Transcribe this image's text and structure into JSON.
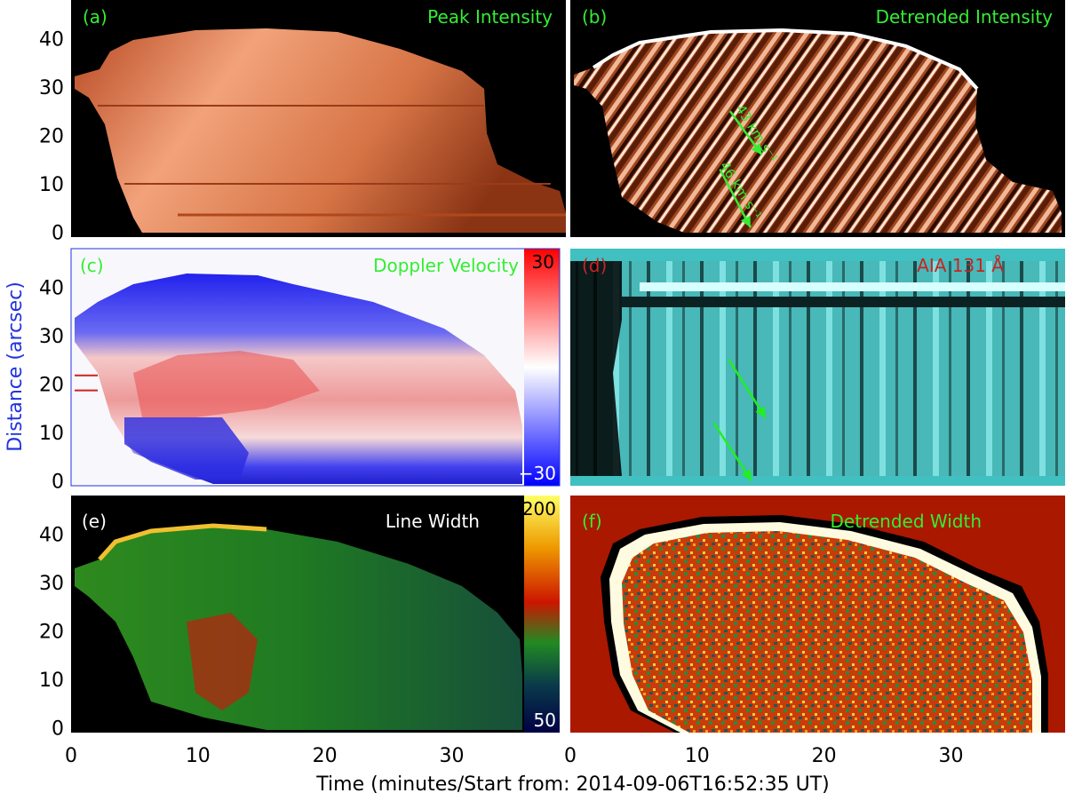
{
  "chart_data": [
    {
      "type": "heatmap",
      "panel": "(a)",
      "title": "Peak Intensity",
      "title_color": "#33ee33",
      "colormap": "black-to-orange",
      "xlim": [
        0,
        39
      ],
      "ylim": [
        -1,
        48
      ],
      "yticks": [
        0,
        10,
        20,
        30,
        40
      ]
    },
    {
      "type": "heatmap",
      "panel": "(b)",
      "title": "Detrended Intensity",
      "title_color": "#33ee33",
      "colormap": "black-to-orange",
      "annotations": [
        {
          "text": "43 km s⁻¹",
          "color": "#33ee33"
        },
        {
          "text": "46 km s⁻¹",
          "color": "#33ee33"
        }
      ],
      "arrows": [
        {
          "from": [
            12.6,
            25
          ],
          "to": [
            15.1,
            16
          ]
        },
        {
          "from": [
            11.8,
            13
          ],
          "to": [
            14.2,
            1
          ]
        }
      ]
    },
    {
      "type": "heatmap",
      "panel": "(c)",
      "title": "Doppler Velocity",
      "title_color": "#33ee33",
      "colormap": "blue-white-red",
      "colorbar": {
        "max_label": "30",
        "min_label": "−30"
      },
      "yticks": [
        0,
        10,
        20,
        30,
        40
      ],
      "markers_y": [
        21.8,
        18.7
      ],
      "marker_color": "#cc2222"
    },
    {
      "type": "heatmap",
      "panel": "(d)",
      "title": "AIA 131 Å",
      "title_color": "#cc2222",
      "colormap": "black-to-cyan",
      "arrows": [
        {
          "from": [
            12.5,
            25
          ],
          "to": [
            15.4,
            13
          ]
        },
        {
          "from": [
            11.3,
            12
          ],
          "to": [
            14.3,
            0
          ]
        }
      ],
      "arrow_color": "#22ee22"
    },
    {
      "type": "heatmap",
      "panel": "(e)",
      "title": "Line Width",
      "title_color": "#ffffff",
      "colormap": "line-width",
      "colorbar": {
        "max_label": "200",
        "min_label": "50"
      },
      "yticks": [
        0,
        10,
        20,
        30,
        40
      ],
      "xticks": [
        0,
        10,
        20,
        30
      ]
    },
    {
      "type": "heatmap",
      "panel": "(f)",
      "title": "Detrended Width",
      "title_color": "#33ee33",
      "colormap": "line-width",
      "xticks": [
        0,
        10,
        20,
        30
      ]
    }
  ],
  "axes": {
    "ylabel": "Distance (arcsec)",
    "ylabel_color": "#2233dd",
    "xlabel": "Time (minutes/Start from: 2014-09-06T16:52:35 UT)",
    "xlim": [
      0,
      39
    ],
    "ylim": [
      -1,
      48
    ]
  },
  "colors": {
    "label_green": "#33ee33",
    "label_red": "#cc2222",
    "axis_blue": "#2233dd",
    "background": "#000000"
  }
}
